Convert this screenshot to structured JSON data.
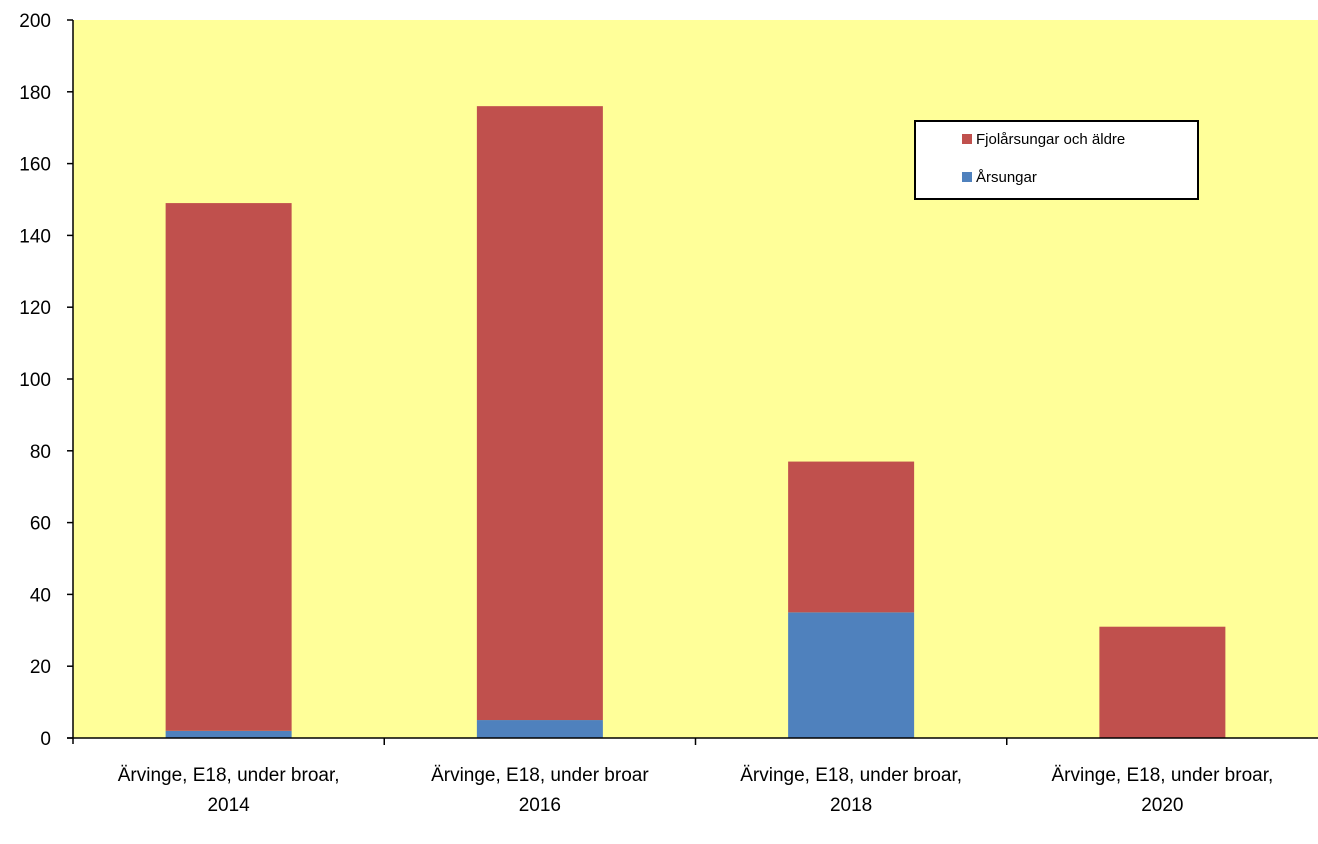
{
  "chart_data": {
    "type": "bar",
    "stacked": true,
    "categories": [
      [
        "Ärvinge, E18, under broar,",
        "2014"
      ],
      [
        "Ärvinge, E18, under broar",
        "2016"
      ],
      [
        "Ärvinge, E18, under broar,",
        "2018"
      ],
      [
        "Ärvinge, E18, under broar,",
        "2020"
      ]
    ],
    "series": [
      {
        "name": "Årsungar",
        "color": "#4f81bd",
        "values": [
          2,
          5,
          35,
          0
        ]
      },
      {
        "name": "Fjolårsungar och äldre",
        "color": "#c0504d",
        "values": [
          147,
          171,
          42,
          31
        ]
      }
    ],
    "legend": {
      "order": [
        "Fjolårsungar och äldre",
        "Årsungar"
      ],
      "position": "top-right"
    },
    "ylim": [
      0,
      200
    ],
    "yticks": [
      0,
      20,
      40,
      60,
      80,
      100,
      120,
      140,
      160,
      180,
      200
    ],
    "plot_background": "#ffff99",
    "grid": false,
    "title": "",
    "xlabel": "",
    "ylabel": ""
  }
}
